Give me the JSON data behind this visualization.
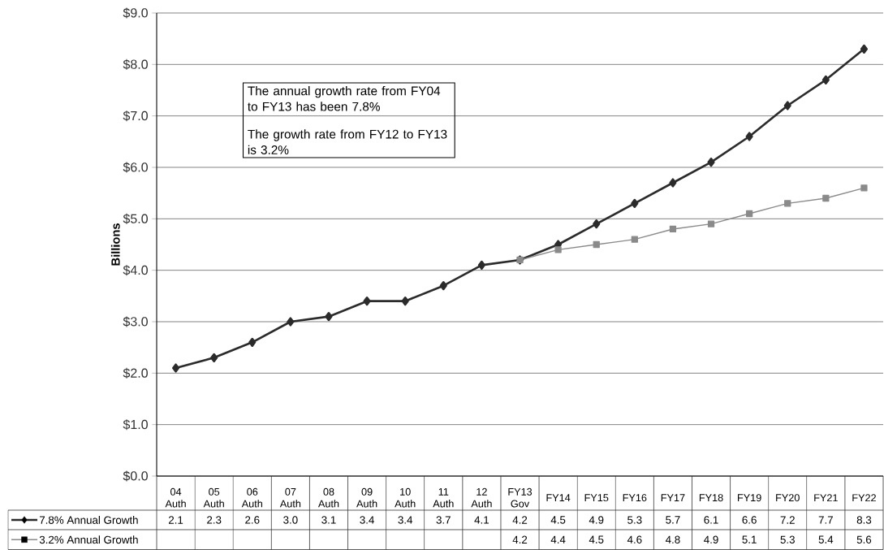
{
  "chart_data": {
    "type": "line",
    "ylabel": "Billions",
    "categories": [
      "04 Auth",
      "05 Auth",
      "06 Auth",
      "07 Auth",
      "08 Auth",
      "09 Auth",
      "10 Auth",
      "11 Auth",
      "12 Auth",
      "FY13 Gov",
      "FY14",
      "FY15",
      "FY16",
      "FY17",
      "FY18",
      "FY19",
      "FY20",
      "FY21",
      "FY22"
    ],
    "series": [
      {
        "name": "7.8% Annual Growth",
        "color": "#2b2b2b",
        "marker": "diamond",
        "values": [
          2.1,
          2.3,
          2.6,
          3.0,
          3.1,
          3.4,
          3.4,
          3.7,
          4.1,
          4.2,
          4.5,
          4.9,
          5.3,
          5.7,
          6.1,
          6.6,
          7.2,
          7.7,
          8.3
        ],
        "value_labels": [
          "2.1",
          "2.3",
          "2.6",
          "3.0",
          "3.1",
          "3.4",
          "3.4",
          "3.7",
          "4.1",
          "4.2",
          "4.5",
          "4.9",
          "5.3",
          "5.7",
          "6.1",
          "6.6",
          "7.2",
          "7.7",
          "8.3"
        ]
      },
      {
        "name": "3.2% Annual Growth",
        "color": "#8a8a8a",
        "marker": "square",
        "values": [
          null,
          null,
          null,
          null,
          null,
          null,
          null,
          null,
          null,
          4.2,
          4.4,
          4.5,
          4.6,
          4.8,
          4.9,
          5.1,
          5.3,
          5.4,
          5.6
        ],
        "value_labels": [
          null,
          null,
          null,
          null,
          null,
          null,
          null,
          null,
          null,
          "4.2",
          "4.4",
          "4.5",
          "4.6",
          "4.8",
          "4.9",
          "5.1",
          "5.3",
          "5.4",
          "5.6"
        ]
      }
    ],
    "ylim": [
      0,
      9
    ],
    "yticks": [
      {
        "value": 0,
        "label": "$0.0"
      },
      {
        "value": 1,
        "label": "$1.0"
      },
      {
        "value": 2,
        "label": "$2.0"
      },
      {
        "value": 3,
        "label": "$3.0"
      },
      {
        "value": 4,
        "label": "$4.0"
      },
      {
        "value": 5,
        "label": "$5.0"
      },
      {
        "value": 6,
        "label": "$6.0"
      },
      {
        "value": 7,
        "label": "$7.0"
      },
      {
        "value": 8,
        "label": "$8.0"
      },
      {
        "value": 9,
        "label": "$9.0"
      }
    ],
    "grid": "y",
    "legend": "bottom",
    "annotations": [
      "The annual growth rate from FY04 to FY13 has been 7.8%",
      "The growth rate from FY12 to FY13 is 3.2%"
    ]
  }
}
